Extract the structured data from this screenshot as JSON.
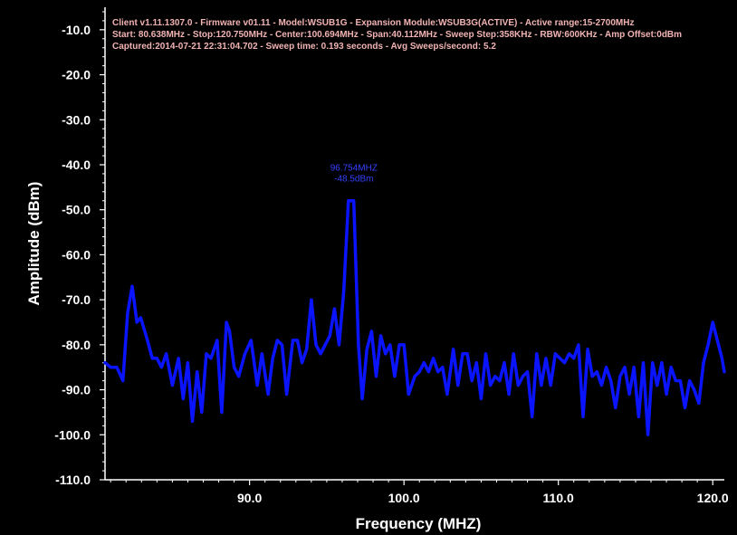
{
  "info": {
    "line1": "Client v1.11.1307.0 - Firmware v01.11 - Model:WSUB1G - Expansion Module:WSUB3G(ACTIVE) - Active range:15-2700MHz",
    "line2": "Start: 80.638MHz - Stop:120.750MHz - Center:100.694MHz - Span:40.112MHz - Sweep Step:358KHz - RBW:600KHz - Amp Offset:0dBm",
    "line3": "Captured:2014-07-21 22:31:04.702 - Sweep time: 0.193 seconds - Avg Sweeps/second: 5.2"
  },
  "peak_marker": {
    "frequency_label": "96.754MHZ",
    "amplitude_label": "-48.5dBm"
  },
  "colors": {
    "background": "#000000",
    "trace": "#0a14ff",
    "axis": "#ffffff",
    "info_text": "#f2b3b3",
    "peak_text": "#3340ff"
  },
  "chart_data": {
    "type": "line",
    "xlabel": "Frequency (MHZ)",
    "ylabel": "Amplitude (dBm)",
    "xlim": [
      80.638,
      120.75
    ],
    "ylim": [
      -110,
      -5
    ],
    "xticks": [
      {
        "value": 90,
        "label": "90.0"
      },
      {
        "value": 100,
        "label": "100.0"
      },
      {
        "value": 110,
        "label": "110.0"
      },
      {
        "value": 120,
        "label": "120.0"
      }
    ],
    "yticks": [
      {
        "value": -10,
        "label": "-10.0"
      },
      {
        "value": -20,
        "label": "-20.0"
      },
      {
        "value": -30,
        "label": "-30.0"
      },
      {
        "value": -40,
        "label": "-40.0"
      },
      {
        "value": -50,
        "label": "-50.0"
      },
      {
        "value": -60,
        "label": "-60.0"
      },
      {
        "value": -70,
        "label": "-70.0"
      },
      {
        "value": -80,
        "label": "-80.0"
      },
      {
        "value": -90,
        "label": "-90.0"
      },
      {
        "value": -100,
        "label": "-100.0"
      },
      {
        "value": -110,
        "label": "-110.0"
      }
    ],
    "grid": false,
    "legend": "none",
    "peak": {
      "x": 96.754,
      "y": -48.5
    },
    "series": [
      {
        "x": [
          80.64,
          81.0,
          81.4,
          81.8,
          82.1,
          82.4,
          82.7,
          82.95,
          83.3,
          83.7,
          84.0,
          84.3,
          84.6,
          85.0,
          85.4,
          85.7,
          86.0,
          86.3,
          86.6,
          86.9,
          87.2,
          87.5,
          87.9,
          88.2,
          88.5,
          88.7,
          89.0,
          89.3,
          89.7,
          90.1,
          90.5,
          90.8,
          91.2,
          91.5,
          91.8,
          92.1,
          92.4,
          92.8,
          93.1,
          93.4,
          93.7,
          94.0,
          94.3,
          94.6,
          94.9,
          95.2,
          95.5,
          95.8,
          96.1,
          96.4,
          96.75,
          97.05,
          97.3,
          97.6,
          97.9,
          98.2,
          98.5,
          98.8,
          99.1,
          99.4,
          99.7,
          100.0,
          100.3,
          100.7,
          101.0,
          101.3,
          101.6,
          101.9,
          102.2,
          102.5,
          102.8,
          103.2,
          103.5,
          103.8,
          104.1,
          104.4,
          104.7,
          105.0,
          105.3,
          105.6,
          105.9,
          106.2,
          106.5,
          106.8,
          107.1,
          107.4,
          107.7,
          108.0,
          108.3,
          108.6,
          108.9,
          109.2,
          109.5,
          109.8,
          110.1,
          110.4,
          110.7,
          111.0,
          111.3,
          111.6,
          111.9,
          112.2,
          112.5,
          112.8,
          113.1,
          113.4,
          113.7,
          114.0,
          114.3,
          114.6,
          114.9,
          115.2,
          115.5,
          115.8,
          116.1,
          116.4,
          116.7,
          117.0,
          117.3,
          117.6,
          117.9,
          118.2,
          118.5,
          118.8,
          119.1,
          119.4,
          119.7,
          120.0,
          120.3,
          120.6,
          120.75
        ],
        "y": [
          -84,
          -85,
          -85,
          -88,
          -73,
          -67,
          -75,
          -74,
          -78,
          -83,
          -83,
          -85,
          -82,
          -89,
          -83,
          -92,
          -84,
          -97,
          -86,
          -95,
          -82,
          -83,
          -79,
          -95,
          -75,
          -77,
          -85,
          -87,
          -82,
          -79,
          -89,
          -82,
          -91,
          -83,
          -79,
          -80,
          -91,
          -79,
          -79,
          -84,
          -81,
          -70,
          -80,
          -82,
          -80,
          -78,
          -72,
          -80,
          -68,
          -48,
          -48,
          -80,
          -92,
          -81,
          -77,
          -87,
          -78,
          -82,
          -80,
          -87,
          -80,
          -80,
          -91,
          -87,
          -86,
          -84,
          -86,
          -83,
          -86,
          -85,
          -91,
          -81,
          -89,
          -82,
          -82,
          -88,
          -84,
          -92,
          -82,
          -89,
          -87,
          -88,
          -84,
          -91,
          -82,
          -89,
          -87,
          -86,
          -96,
          -82,
          -89,
          -83,
          -89,
          -82,
          -83,
          -84,
          -82,
          -83,
          -80,
          -96,
          -81,
          -87,
          -86,
          -89,
          -85,
          -88,
          -94,
          -87,
          -85,
          -91,
          -85,
          -96,
          -84,
          -100,
          -84,
          -89,
          -84,
          -91,
          -85,
          -88,
          -88,
          -94,
          -88,
          -90,
          -93,
          -84,
          -80,
          -75,
          -79,
          -83,
          -86
        ]
      }
    ]
  }
}
